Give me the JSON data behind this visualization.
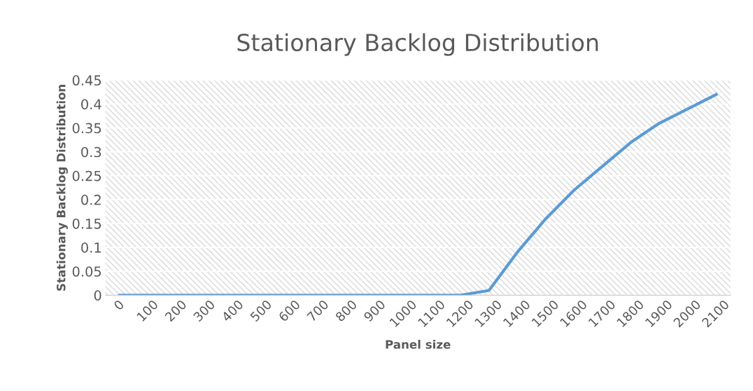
{
  "chart_data": {
    "type": "line",
    "title": "Stationary Backlog Distribution",
    "xlabel": "Panel size",
    "ylabel": "Stationary Backlog Distribution",
    "categories": [
      "0",
      "100",
      "200",
      "300",
      "400",
      "500",
      "600",
      "700",
      "800",
      "900",
      "1000",
      "1100",
      "1200",
      "1300",
      "1400",
      "1500",
      "1600",
      "1700",
      "1800",
      "1900",
      "2000",
      "2100"
    ],
    "series": [
      {
        "color": "#5b9bd5",
        "values": [
          0,
          0,
          0,
          0,
          0,
          0,
          0,
          0,
          0,
          0,
          0,
          0,
          0,
          0.01,
          0.09,
          0.16,
          0.22,
          0.27,
          0.32,
          0.36,
          0.39,
          0.42
        ]
      }
    ],
    "ylim": [
      0,
      0.45
    ],
    "yticks": [
      0,
      0.05,
      0.1,
      0.15,
      0.2,
      0.25,
      0.3,
      0.35,
      0.4,
      0.45
    ],
    "grid": "y",
    "marker": "none",
    "line_style": "solid"
  }
}
